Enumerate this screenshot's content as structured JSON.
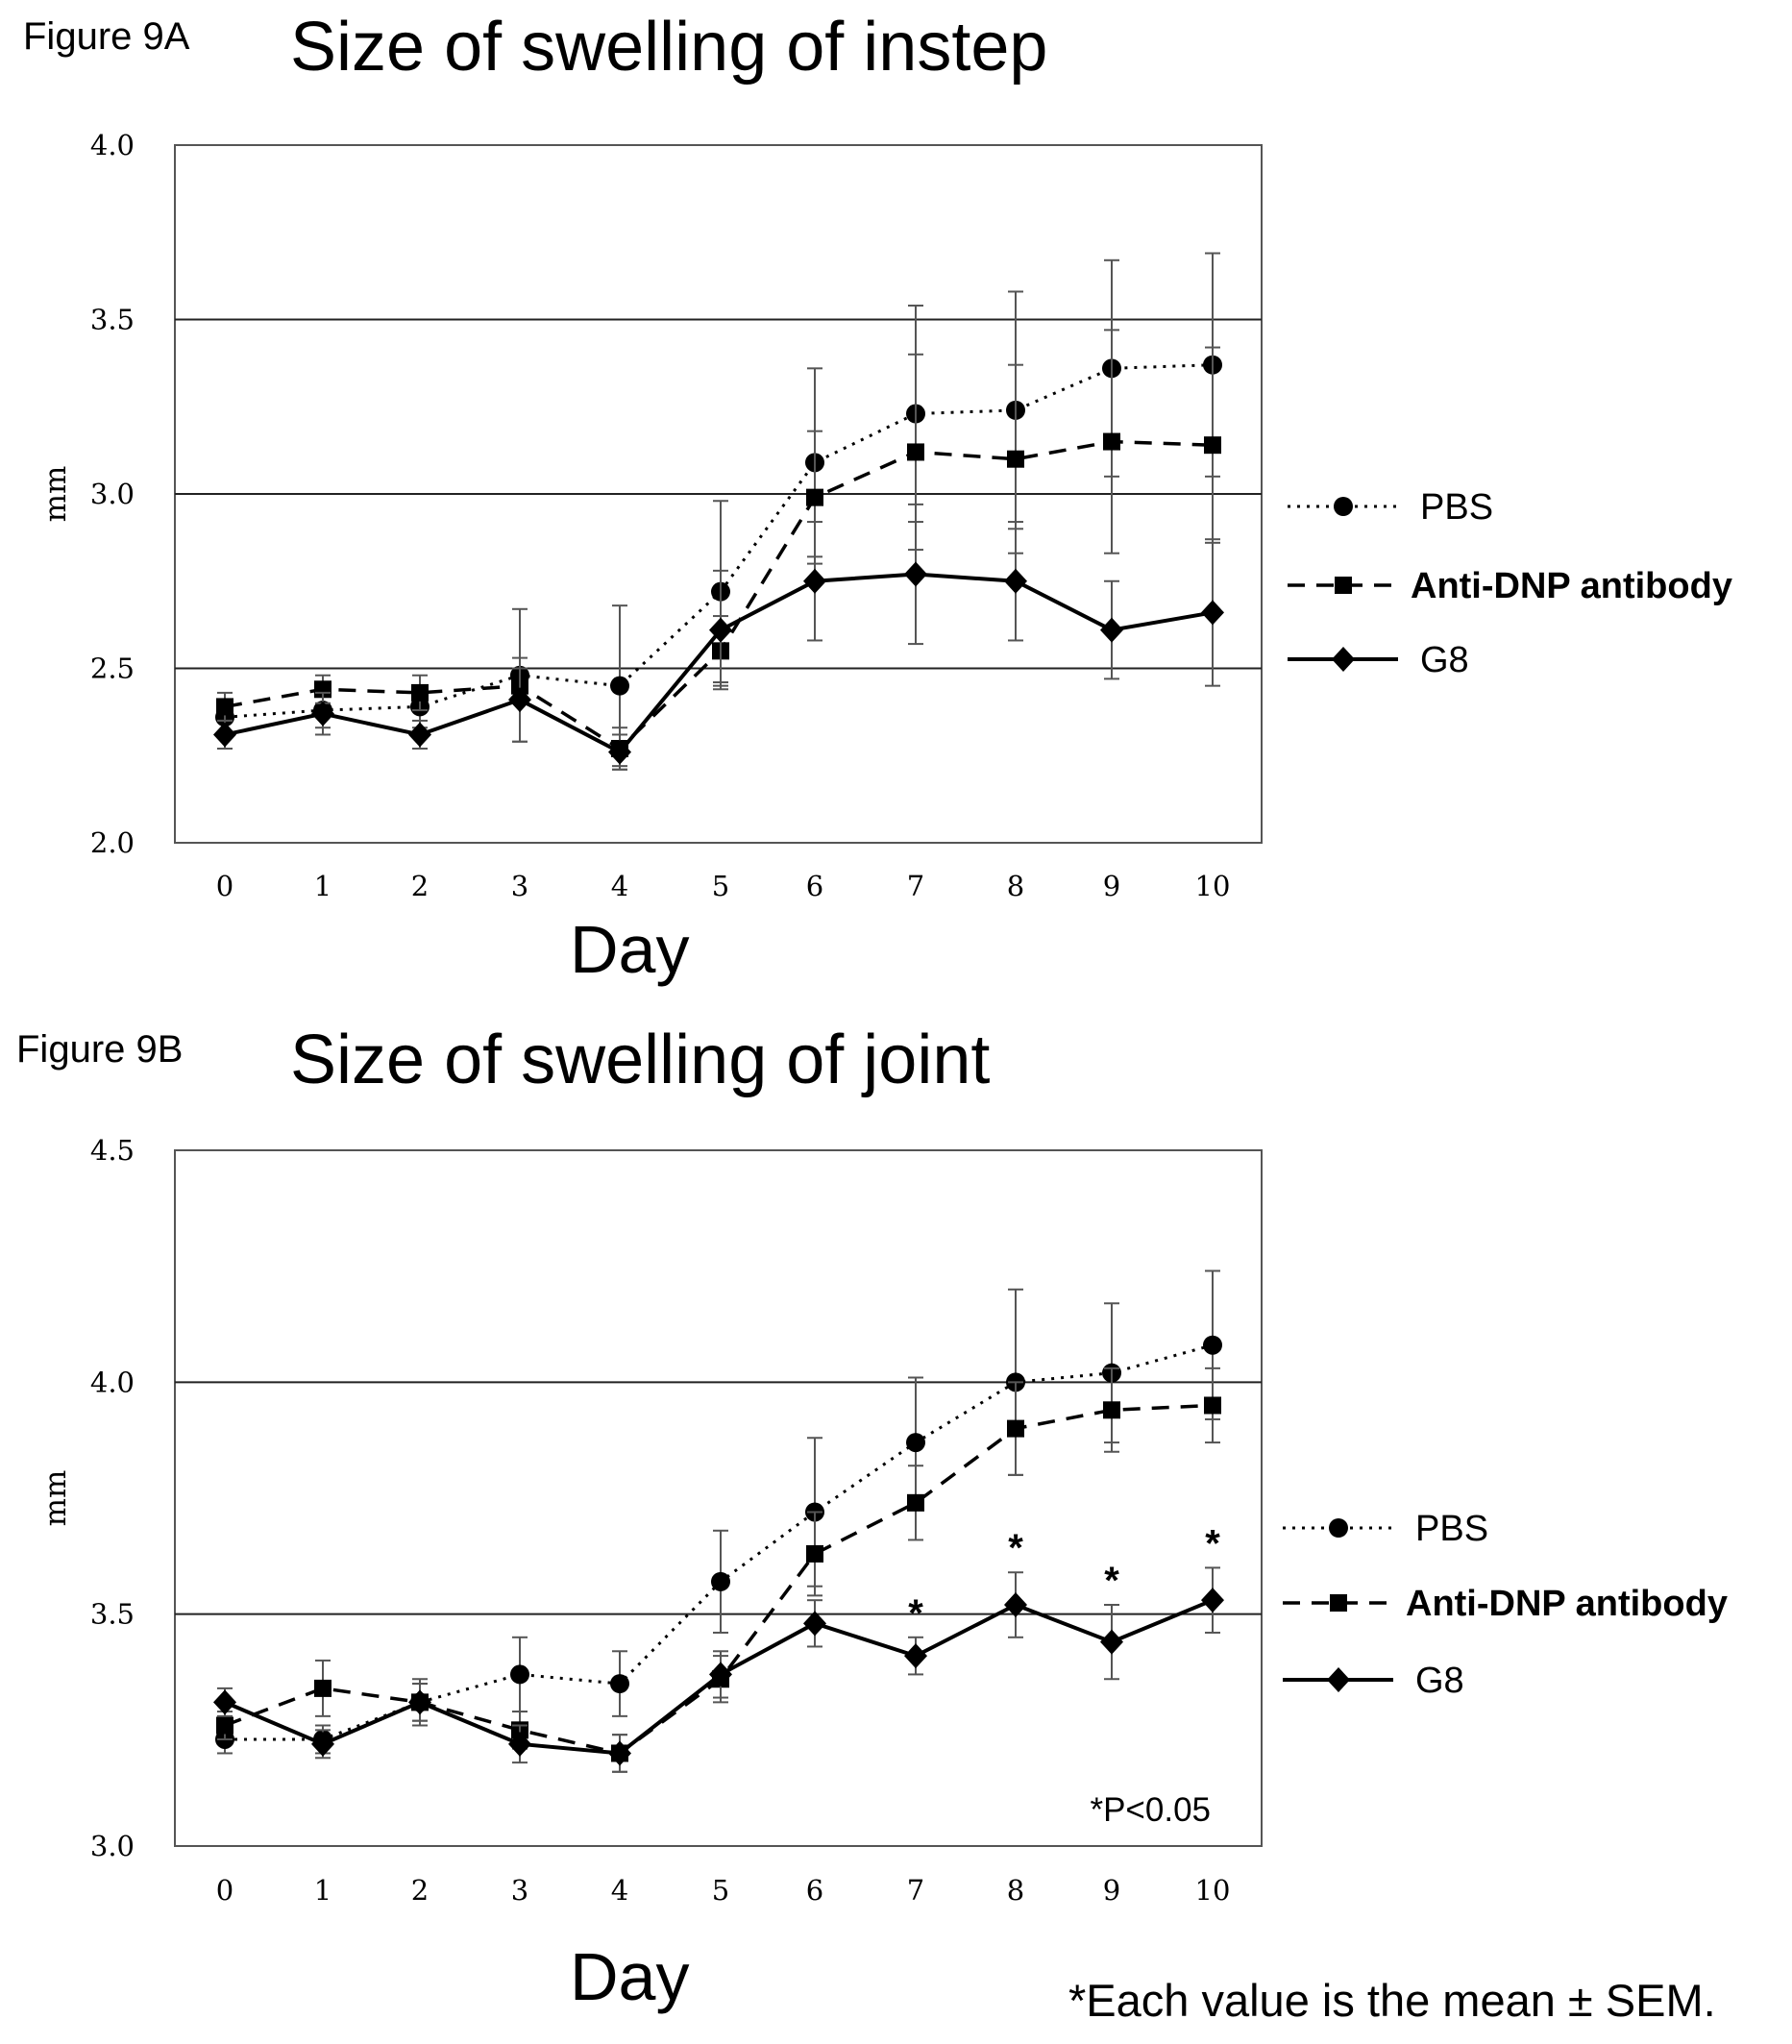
{
  "figures": [
    {
      "label": "Figure 9A",
      "title": "Size of swelling of instep",
      "xlabel": "Day",
      "ylabel": "mm",
      "pnote": "",
      "significant": []
    },
    {
      "label": "Figure 9B",
      "title": "Size of swelling of joint",
      "xlabel": "Day",
      "ylabel": "mm",
      "pnote": "*P<0.05",
      "significant": [
        7,
        8,
        9,
        10
      ]
    }
  ],
  "footnote": "*Each value is the mean ± SEM.",
  "chart_data": [
    {
      "type": "line",
      "title": "Size of swelling of instep",
      "xlabel": "Day",
      "ylabel": "mm",
      "x": [
        0,
        1,
        2,
        3,
        4,
        5,
        6,
        7,
        8,
        9,
        10
      ],
      "ylim": [
        2.0,
        4.0
      ],
      "yticks": [
        "2.0",
        "2.5",
        "3.0",
        "3.5",
        "4.0"
      ],
      "grid": "horizontal",
      "legend": "right",
      "series": [
        {
          "name": "PBS",
          "style": "dotted",
          "marker": "circle",
          "values": [
            2.36,
            2.38,
            2.39,
            2.48,
            2.45,
            2.72,
            3.09,
            3.23,
            3.24,
            3.36,
            3.37
          ],
          "err": [
            0.05,
            0.05,
            0.06,
            0.19,
            0.23,
            0.26,
            0.27,
            0.31,
            0.34,
            0.31,
            0.32
          ]
        },
        {
          "name": "Anti-DNP antibody",
          "style": "dashed",
          "marker": "square",
          "values": [
            2.39,
            2.44,
            2.43,
            2.45,
            2.27,
            2.55,
            2.99,
            3.12,
            3.1,
            3.15,
            3.14
          ],
          "err": [
            0.04,
            0.04,
            0.05,
            0.05,
            0.06,
            0.1,
            0.19,
            0.28,
            0.27,
            0.32,
            0.28
          ]
        },
        {
          "name": "G8",
          "style": "solid",
          "marker": "diamond",
          "values": [
            2.31,
            2.37,
            2.31,
            2.41,
            2.26,
            2.61,
            2.75,
            2.77,
            2.75,
            2.61,
            2.66
          ],
          "err": [
            0.04,
            0.06,
            0.04,
            0.12,
            0.05,
            0.17,
            0.17,
            0.2,
            0.17,
            0.14,
            0.21
          ]
        }
      ]
    },
    {
      "type": "line",
      "title": "Size of swelling of joint",
      "xlabel": "Day",
      "ylabel": "mm",
      "x": [
        0,
        1,
        2,
        3,
        4,
        5,
        6,
        7,
        8,
        9,
        10
      ],
      "ylim": [
        3.0,
        4.5
      ],
      "yticks": [
        "3.0",
        "3.5",
        "4.0",
        "4.5"
      ],
      "grid": "horizontal",
      "legend": "right",
      "annotation": "*P<0.05",
      "series": [
        {
          "name": "PBS",
          "style": "dotted",
          "marker": "circle",
          "values": [
            3.23,
            3.23,
            3.31,
            3.37,
            3.35,
            3.57,
            3.72,
            3.87,
            4.0,
            4.02,
            4.08
          ],
          "err": [
            0.03,
            0.03,
            0.04,
            0.08,
            0.07,
            0.11,
            0.16,
            0.14,
            0.2,
            0.15,
            0.16
          ]
        },
        {
          "name": "Anti-DNP antibody",
          "style": "dashed",
          "marker": "square",
          "values": [
            3.26,
            3.34,
            3.31,
            3.25,
            3.2,
            3.36,
            3.63,
            3.74,
            3.9,
            3.94,
            3.95
          ],
          "err": [
            0.03,
            0.06,
            0.05,
            0.04,
            0.04,
            0.05,
            0.09,
            0.08,
            0.1,
            0.09,
            0.08
          ]
        },
        {
          "name": "G8",
          "style": "solid",
          "marker": "diamond",
          "values": [
            3.31,
            3.22,
            3.31,
            3.22,
            3.2,
            3.37,
            3.48,
            3.41,
            3.52,
            3.44,
            3.53
          ],
          "err": [
            0.03,
            0.03,
            0.04,
            0.04,
            0.04,
            0.05,
            0.05,
            0.04,
            0.07,
            0.08,
            0.07
          ]
        }
      ]
    }
  ]
}
